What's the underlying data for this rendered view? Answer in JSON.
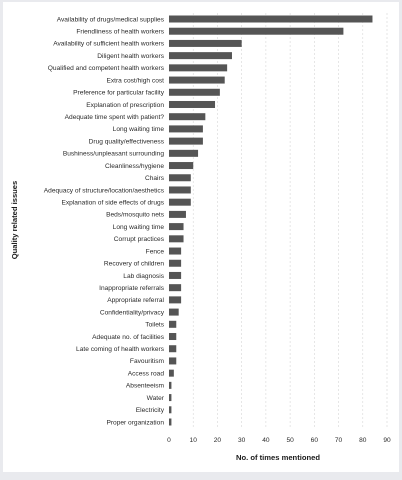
{
  "chart_data": {
    "type": "bar",
    "orientation": "horizontal",
    "xlabel": "No. of times mentioned",
    "ylabel": "Quality related issues",
    "xlim": [
      0,
      90
    ],
    "xticks": [
      0,
      10,
      20,
      30,
      40,
      50,
      60,
      70,
      80,
      90
    ],
    "grid": true,
    "bar_color": "#555555",
    "categories": [
      "Availability of drugs/medical supplies",
      "Friendliness of health workers",
      "Availability of sufficient health workers",
      "Diligent health workers",
      "Qualified and competent health workers",
      "Extra cost/high cost",
      "Preference for particular facility",
      "Explanation of prescription",
      "Adequate time spent with patient?",
      "Long waiting time",
      "Drug quality/effectiveness",
      "Bushiness/unpleasant surrounding",
      "Cleanliness/hygiene",
      "Chairs",
      "Adequacy of structure/location/aesthetics",
      "Explanation of side effects of drugs",
      "Beds/mosquito nets",
      "Long waiting time",
      "Corrupt practices",
      "Fence",
      "Recovery of children",
      "Lab diagnosis",
      "Inappropriate referrals",
      "Appropriate referral",
      "Confidentiality/privacy",
      "Toilets",
      "Adequate no. of facilities",
      "Late coming of health workers",
      "Favouritism",
      "Access road",
      "Absenteeism",
      "Water",
      "Electricity",
      "Proper organization"
    ],
    "values": [
      84,
      72,
      30,
      26,
      24,
      23,
      21,
      19,
      15,
      14,
      14,
      12,
      10,
      9,
      9,
      9,
      7,
      6,
      6,
      5,
      5,
      5,
      5,
      5,
      4,
      3,
      3,
      3,
      3,
      2,
      1,
      1,
      1,
      1
    ]
  }
}
